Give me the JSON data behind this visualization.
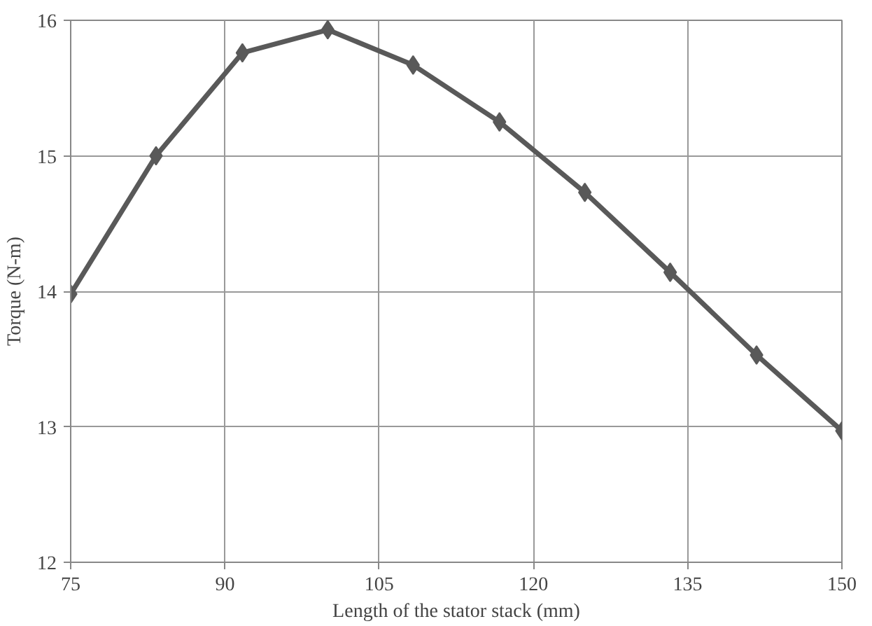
{
  "chart_data": {
    "type": "line",
    "xlabel": "Length of the stator stack (mm)",
    "ylabel": "Torque (N-m)",
    "x": [
      75,
      83.3,
      91.7,
      100,
      108.3,
      116.7,
      125,
      133.3,
      141.7,
      150
    ],
    "series": [
      {
        "color": "#595959",
        "values": [
          13.98,
          15.0,
          15.76,
          15.93,
          15.67,
          15.25,
          14.73,
          14.14,
          13.53,
          12.97
        ]
      }
    ],
    "xlim": [
      75,
      150
    ],
    "xticks": [
      75,
      90,
      105,
      120,
      135,
      150
    ],
    "ylim": [
      12,
      16
    ],
    "yticks": [
      12,
      13,
      14,
      15,
      16
    ],
    "grid": true,
    "marker": "diamond",
    "line_style": "solid"
  }
}
